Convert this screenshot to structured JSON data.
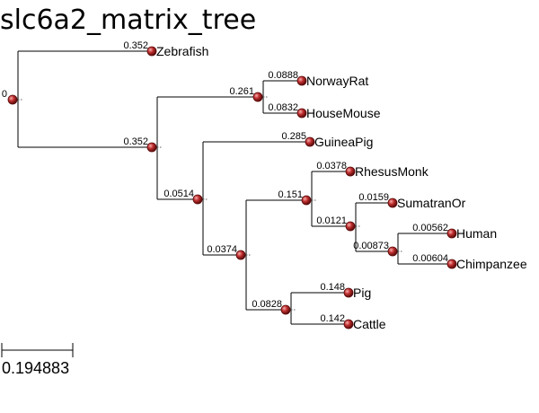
{
  "title": "slc6a2_matrix_tree",
  "root_label": "0",
  "scale_label": "0.194883",
  "colors": {
    "node_fill": "#a81c1c",
    "node_stroke": "#5a0a0a",
    "line": "#000000"
  },
  "tree": {
    "id": "root",
    "children": [
      {
        "id": "zebrafish",
        "name": "Zebrafish",
        "length": "0.352"
      },
      {
        "id": "n1",
        "length": "0.352",
        "children": [
          {
            "id": "n2",
            "length": "0.261",
            "children": [
              {
                "id": "norwayrat",
                "name": "NorwayRat",
                "length": "0.0888"
              },
              {
                "id": "housemouse",
                "name": "HouseMouse",
                "length": "0.0832"
              }
            ]
          },
          {
            "id": "n3",
            "length": "0.0514",
            "children": [
              {
                "id": "guineapig",
                "name": "GuineaPig",
                "length": "0.285"
              },
              {
                "id": "n4",
                "length": "0.0374",
                "children": [
                  {
                    "id": "n5",
                    "length": "0.151",
                    "children": [
                      {
                        "id": "rhesusmonk",
                        "name": "RhesusMonk",
                        "length": "0.0378"
                      },
                      {
                        "id": "n6",
                        "length": "0.0121",
                        "children": [
                          {
                            "id": "sumatranor",
                            "name": "SumatranOr",
                            "length": "0.0159"
                          },
                          {
                            "id": "n7",
                            "length": "0.00873",
                            "children": [
                              {
                                "id": "human",
                                "name": "Human",
                                "length": "0.00562"
                              },
                              {
                                "id": "chimpanzee",
                                "name": "Chimpanzee",
                                "length": "0.00604"
                              }
                            ]
                          }
                        ]
                      }
                    ]
                  },
                  {
                    "id": "n8",
                    "length": "0.0828",
                    "children": [
                      {
                        "id": "pig",
                        "name": "Pig",
                        "length": "0.148"
                      },
                      {
                        "id": "cattle",
                        "name": "Cattle",
                        "length": "0.142"
                      }
                    ]
                  }
                ]
              }
            ]
          }
        ]
      }
    ]
  }
}
